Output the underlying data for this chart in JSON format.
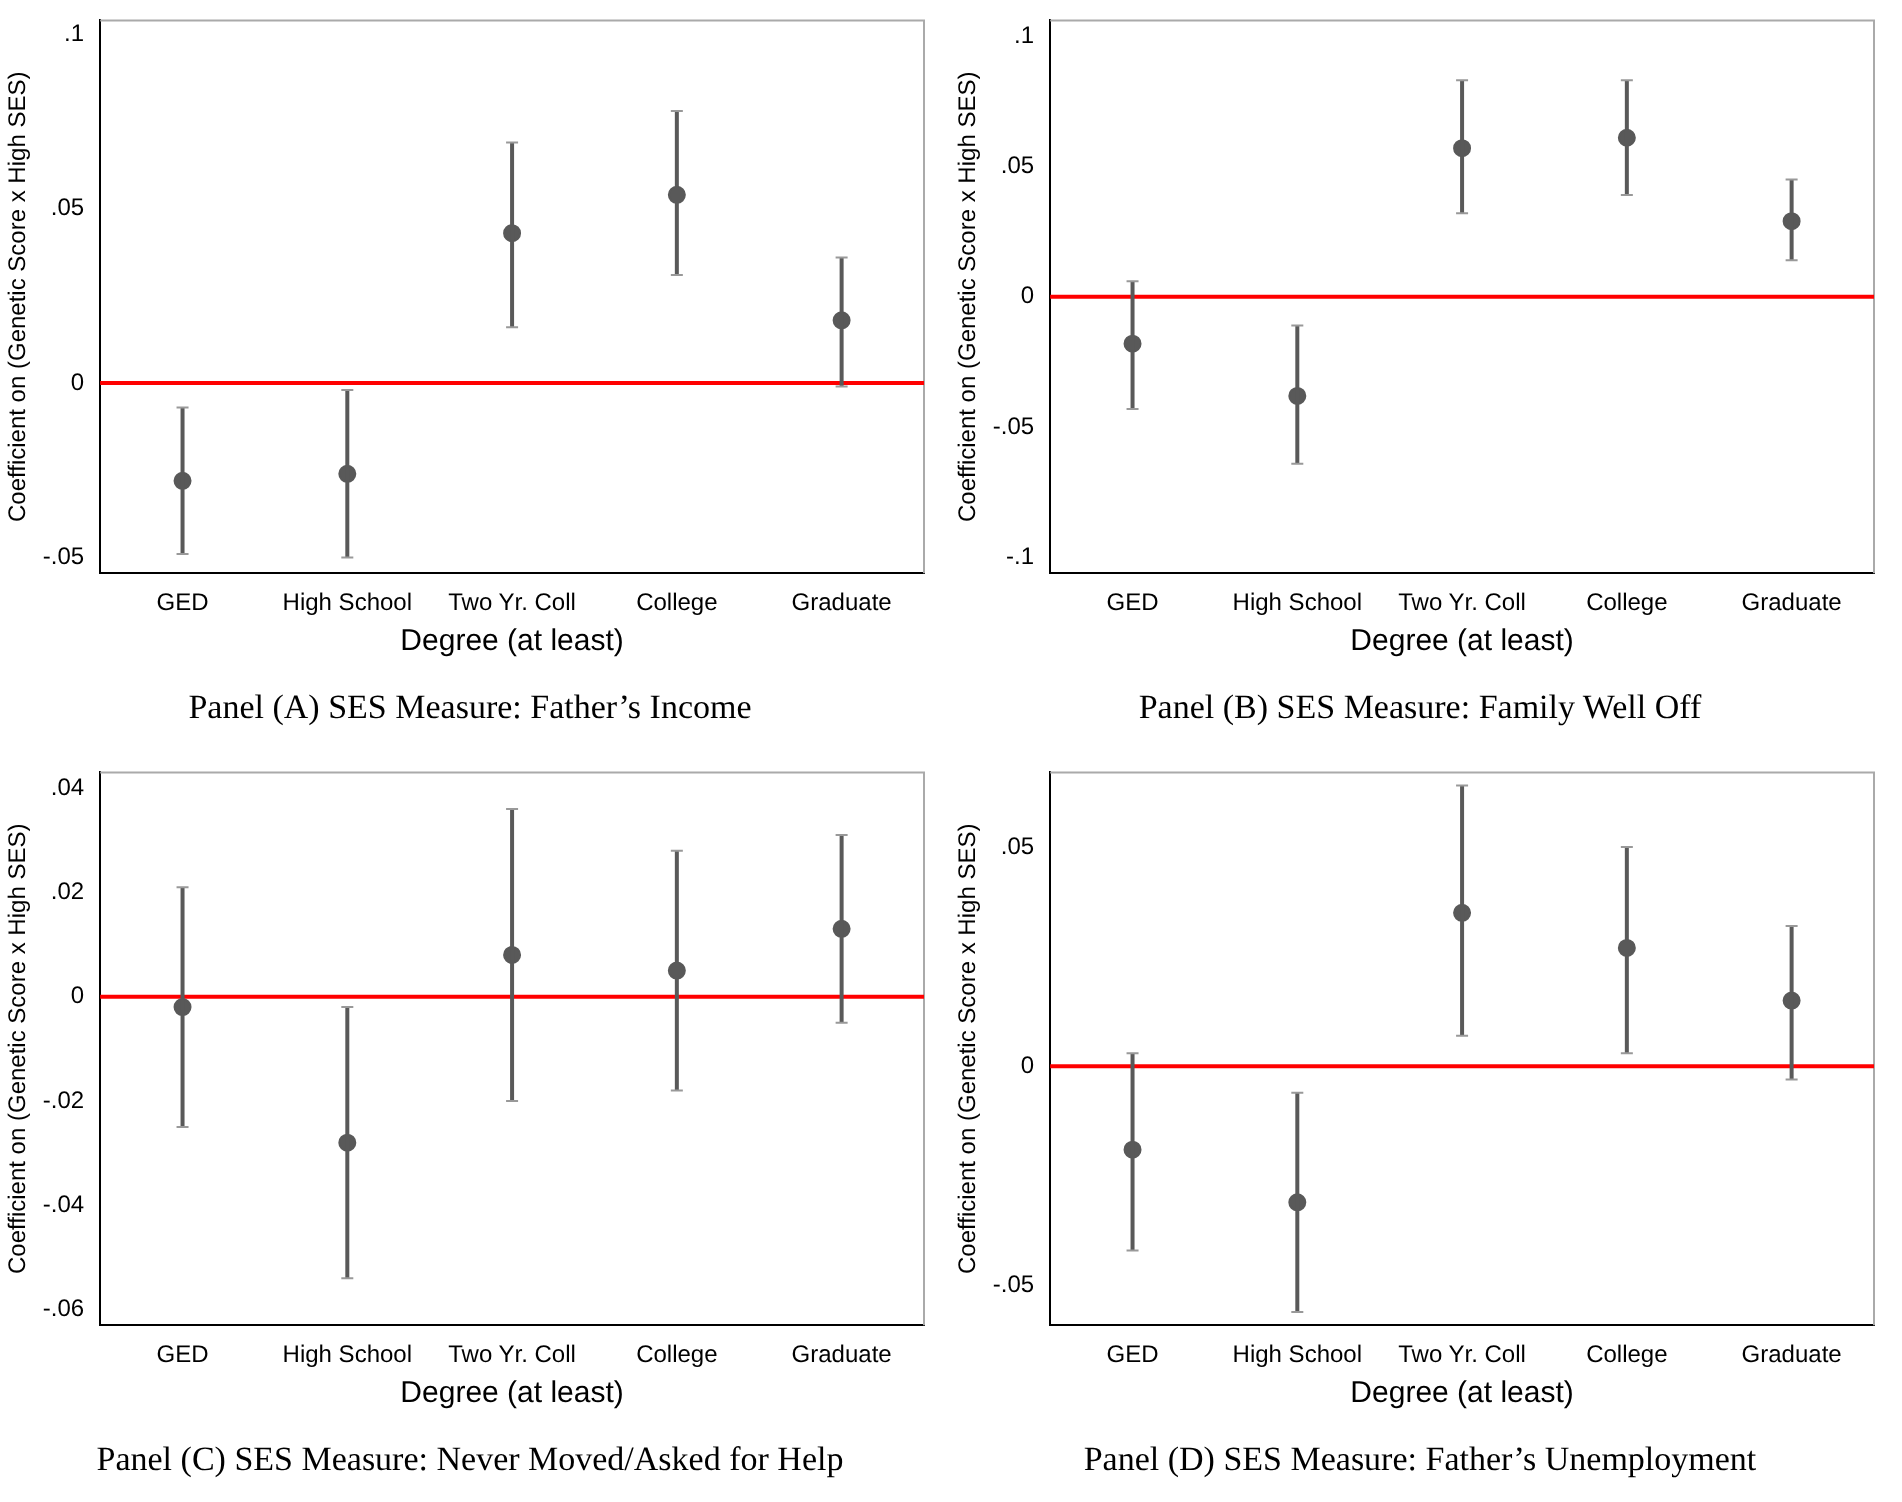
{
  "chart_data": [
    {
      "type": "scatter",
      "title": "Panel (A) SES Measure: Father’s Income",
      "xlabel": "Degree (at least)",
      "ylabel": "Coefficient on (Genetic Score x High SES)",
      "categories": [
        "GED",
        "High School",
        "Two Yr. Coll",
        "College",
        "Graduate"
      ],
      "marker": "circle",
      "ylim": [
        -0.0545,
        0.104
      ],
      "yticks": [
        {
          "value": -0.05,
          "label": "-.05"
        },
        {
          "value": 0,
          "label": "0"
        },
        {
          "value": 0.05,
          "label": ".05"
        },
        {
          "value": 0.1,
          "label": ".1"
        }
      ],
      "series": [
        {
          "color": "#595959",
          "values": [
            -0.028,
            -0.026,
            0.043,
            0.054,
            0.018
          ],
          "errors": [
            [
              -0.049,
              -0.007
            ],
            [
              -0.05,
              -0.002
            ],
            [
              0.016,
              0.069
            ],
            [
              0.031,
              0.078
            ],
            [
              -0.001,
              0.036
            ]
          ]
        }
      ],
      "ref_lines": [
        {
          "axis": "y",
          "value": 0,
          "color": "#ff0000"
        }
      ]
    },
    {
      "type": "scatter",
      "title": "Panel (B) SES Measure: Family Well Off",
      "xlabel": "Degree (at least)",
      "ylabel": "Coefficient on (Genetic Score x High SES)",
      "categories": [
        "GED",
        "High School",
        "Two Yr. Coll",
        "College",
        "Graduate"
      ],
      "marker": "circle",
      "ylim": [
        -0.106,
        0.106
      ],
      "yticks": [
        {
          "value": -0.1,
          "label": "-.1"
        },
        {
          "value": -0.05,
          "label": "-.05"
        },
        {
          "value": 0,
          "label": "0"
        },
        {
          "value": 0.05,
          "label": ".05"
        },
        {
          "value": 0.1,
          "label": ".1"
        }
      ],
      "series": [
        {
          "color": "#595959",
          "values": [
            -0.018,
            -0.038,
            0.057,
            0.061,
            0.029
          ],
          "errors": [
            [
              -0.043,
              0.006
            ],
            [
              -0.064,
              -0.011
            ],
            [
              0.032,
              0.083
            ],
            [
              0.039,
              0.083
            ],
            [
              0.014,
              0.045
            ]
          ]
        }
      ],
      "ref_lines": [
        {
          "axis": "y",
          "value": 0,
          "color": "#ff0000"
        }
      ]
    },
    {
      "type": "scatter",
      "title": "Panel (C) SES Measure: Never Moved/Asked for Help",
      "xlabel": "Degree (at least)",
      "ylabel": "Coefficient on (Genetic Score x High SES)",
      "categories": [
        "GED",
        "High School",
        "Two Yr. Coll",
        "College",
        "Graduate"
      ],
      "marker": "circle",
      "ylim": [
        -0.063,
        0.043
      ],
      "yticks": [
        {
          "value": -0.06,
          "label": "-.06"
        },
        {
          "value": -0.04,
          "label": "-.04"
        },
        {
          "value": -0.02,
          "label": "-.02"
        },
        {
          "value": 0,
          "label": "0"
        },
        {
          "value": 0.02,
          "label": ".02"
        },
        {
          "value": 0.04,
          "label": ".04"
        }
      ],
      "series": [
        {
          "color": "#595959",
          "values": [
            -0.002,
            -0.028,
            0.008,
            0.005,
            0.013
          ],
          "errors": [
            [
              -0.025,
              0.021
            ],
            [
              -0.054,
              -0.002
            ],
            [
              -0.02,
              0.036
            ],
            [
              -0.018,
              0.028
            ],
            [
              -0.005,
              0.031
            ]
          ]
        }
      ],
      "ref_lines": [
        {
          "axis": "y",
          "value": 0,
          "color": "#ff0000"
        }
      ]
    },
    {
      "type": "scatter",
      "title": "Panel (D) SES Measure: Father’s Unemployment",
      "xlabel": "Degree (at least)",
      "ylabel": "Coefficient on (Genetic Score x High SES)",
      "categories": [
        "GED",
        "High School",
        "Two Yr. Coll",
        "College",
        "Graduate"
      ],
      "marker": "circle",
      "ylim": [
        -0.059,
        0.067
      ],
      "yticks": [
        {
          "value": -0.05,
          "label": "-.05"
        },
        {
          "value": 0,
          "label": "0"
        },
        {
          "value": 0.05,
          "label": ".05"
        }
      ],
      "series": [
        {
          "color": "#595959",
          "values": [
            -0.019,
            -0.031,
            0.035,
            0.027,
            0.015
          ],
          "errors": [
            [
              -0.042,
              0.003
            ],
            [
              -0.056,
              -0.006
            ],
            [
              0.007,
              0.064
            ],
            [
              0.003,
              0.05
            ],
            [
              -0.003,
              0.032
            ]
          ]
        }
      ],
      "ref_lines": [
        {
          "axis": "y",
          "value": 0,
          "color": "#ff0000"
        }
      ]
    }
  ]
}
